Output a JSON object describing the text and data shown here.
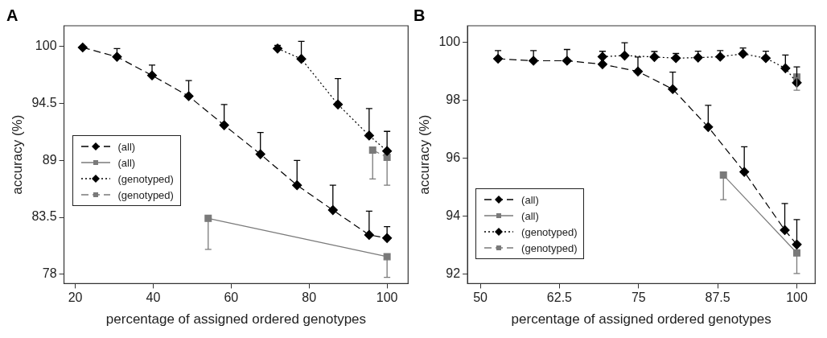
{
  "chart_data": [
    {
      "type": "line",
      "title": "A",
      "xlabel": "percentage of assigned ordered genotypes",
      "ylabel": "accuracy (%)",
      "xlim": [
        17.1,
        105.4
      ],
      "ylim": [
        77.1,
        102
      ],
      "xticks": [
        20,
        40,
        60,
        80,
        100
      ],
      "yticks": [
        78,
        83.5,
        89,
        94.5,
        100
      ],
      "legend": "center left",
      "series": [
        {
          "name": "(all)",
          "color": "#000000",
          "marker": "diamond",
          "line_style": "dashed",
          "x": [
            21.9,
            30.7,
            39.7,
            49.1,
            58.2,
            67.5,
            76.9,
            86.1,
            95.4,
            100
          ],
          "values": [
            99.9,
            99.0,
            97.2,
            95.2,
            92.4,
            89.6,
            86.6,
            84.2,
            81.8,
            81.5
          ],
          "errors": [
            null,
            [
              99.0,
              99.8
            ],
            [
              97.2,
              98.2
            ],
            [
              95.2,
              96.7
            ],
            [
              92.4,
              94.4
            ],
            [
              89.6,
              91.7
            ],
            [
              86.6,
              89.0
            ],
            [
              84.2,
              86.6
            ],
            [
              81.8,
              84.1
            ],
            [
              81.5,
              82.6
            ]
          ]
        },
        {
          "name": "(all)",
          "color": "#7a7a7a",
          "marker": "square",
          "line_style": "solid",
          "x": [
            54.1,
            100
          ],
          "values": [
            83.4,
            79.7
          ],
          "errors": [
            [
              80.4,
              83.4
            ],
            [
              77.7,
              79.7
            ]
          ]
        },
        {
          "name": "(genotyped)",
          "color": "#000000",
          "marker": "diamond",
          "line_style": "dotted",
          "x": [
            71.9,
            78.0,
            87.4,
            95.4,
            100
          ],
          "values": [
            99.8,
            98.8,
            94.4,
            91.4,
            89.9
          ],
          "errors": [
            [
              99.8,
              100.1
            ],
            [
              98.8,
              100.5
            ],
            [
              94.4,
              96.9
            ],
            [
              91.4,
              94.0
            ],
            [
              89.9,
              91.8
            ]
          ]
        },
        {
          "name": "(genotyped)",
          "color": "#7a7a7a",
          "marker": "square",
          "line_style": "dashed",
          "x": [
            96.3,
            100
          ],
          "values": [
            90.0,
            89.3
          ],
          "errors": [
            [
              87.2,
              90.0
            ],
            [
              86.6,
              89.3
            ]
          ]
        }
      ]
    },
    {
      "type": "line",
      "title": "B",
      "xlabel": "percentage of assigned ordered genotypes",
      "ylabel": "accuracy (%)",
      "xlim": [
        47.97,
        102.9
      ],
      "ylim": [
        91.67,
        100.58
      ],
      "xticks": [
        50,
        62.5,
        75,
        87.5,
        100
      ],
      "yticks": [
        92,
        94,
        96,
        98,
        100
      ],
      "legend": "bottom left",
      "series": [
        {
          "name": "(all)",
          "color": "#000000",
          "marker": "diamond",
          "line_style": "dashed",
          "x": [
            52.8,
            58.4,
            63.7,
            69.3,
            74.9,
            80.4,
            86.0,
            91.7,
            98.1,
            100
          ],
          "values": [
            99.44,
            99.37,
            99.37,
            99.25,
            99.0,
            98.39,
            97.08,
            95.53,
            93.52,
            93.02
          ],
          "errors": [
            [
              99.44,
              99.72
            ],
            [
              99.37,
              99.72
            ],
            [
              99.37,
              99.76
            ],
            [
              99.25,
              99.7
            ],
            [
              99.0,
              99.5
            ],
            [
              98.39,
              98.98
            ],
            [
              97.08,
              97.83
            ],
            [
              95.53,
              96.4
            ],
            [
              93.52,
              94.44
            ],
            [
              93.02,
              93.88
            ]
          ]
        },
        {
          "name": "(all)",
          "color": "#7a7a7a",
          "marker": "square",
          "line_style": "solid",
          "x": [
            88.4,
            100
          ],
          "values": [
            95.42,
            92.73
          ],
          "errors": [
            [
              94.57,
              95.42
            ],
            [
              92.02,
              92.73
            ]
          ]
        },
        {
          "name": "(genotyped)",
          "color": "#000000",
          "marker": "diamond",
          "line_style": "dotted",
          "x": [
            69.3,
            72.8,
            77.5,
            80.9,
            84.4,
            87.9,
            91.5,
            95.1,
            98.2,
            100
          ],
          "values": [
            99.51,
            99.55,
            99.5,
            99.46,
            99.48,
            99.51,
            99.61,
            99.46,
            99.11,
            98.61
          ],
          "errors": [
            [
              99.51,
              99.7
            ],
            [
              99.55,
              99.99
            ],
            [
              99.5,
              99.69
            ],
            [
              99.46,
              99.62
            ],
            [
              99.48,
              99.7
            ],
            [
              99.51,
              99.72
            ],
            [
              99.61,
              99.81
            ],
            [
              99.46,
              99.7
            ],
            [
              99.11,
              99.57
            ],
            [
              98.61,
              99.16
            ]
          ]
        },
        {
          "name": "(genotyped)",
          "color": "#7a7a7a",
          "marker": "square",
          "line_style": "dashed",
          "x": [
            100
          ],
          "values": [
            98.81
          ],
          "errors": [
            [
              98.35,
              98.81
            ]
          ]
        }
      ]
    }
  ]
}
